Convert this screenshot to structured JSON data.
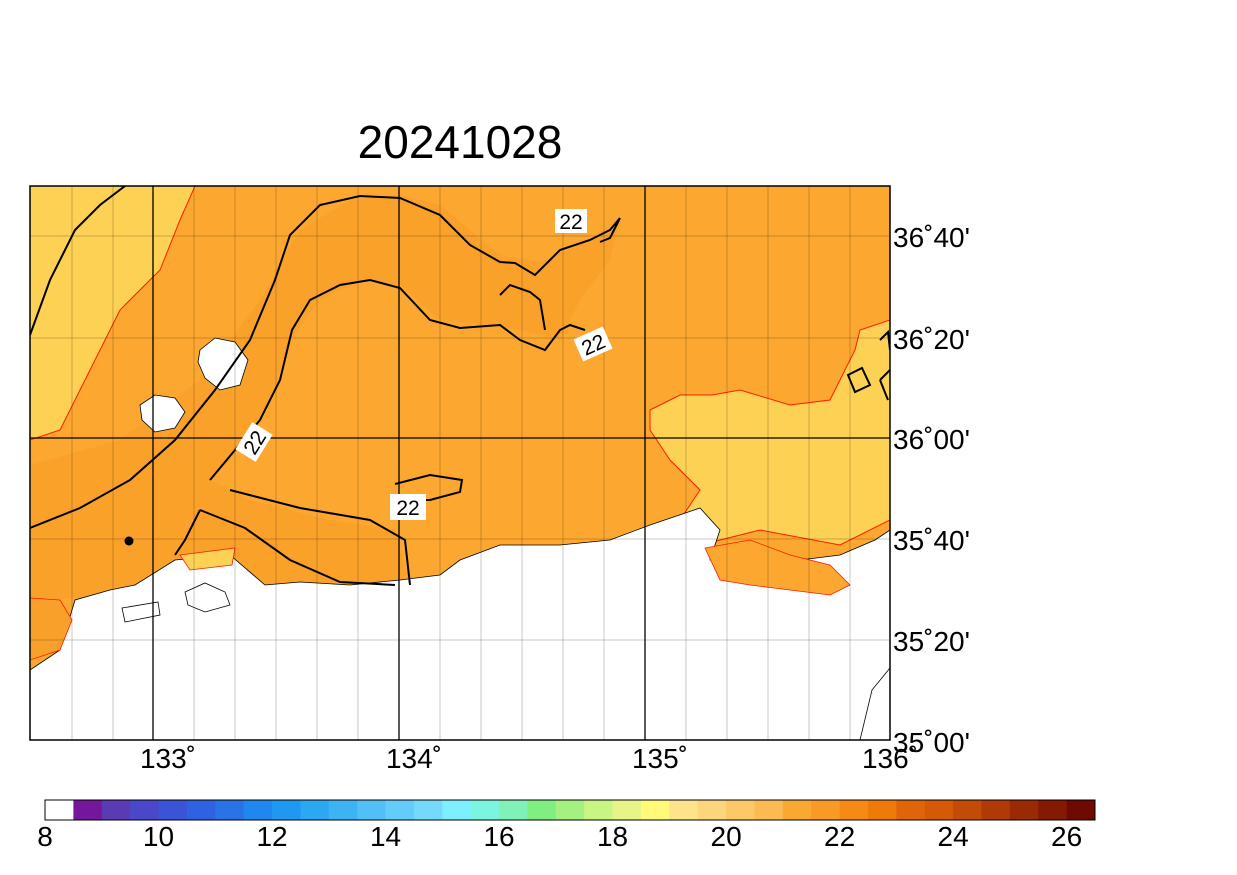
{
  "title": "20241028",
  "map": {
    "lon_range": [
      132.5,
      136.0
    ],
    "lat_range": [
      35.0,
      36.9
    ],
    "lon_tick_labels": [
      "133˚",
      "134˚",
      "135˚",
      "136˚"
    ],
    "lat_tick_labels": [
      "36˚40'",
      "36˚20'",
      "36˚00'",
      "35˚40'",
      "35˚20'",
      "35˚00'"
    ],
    "contour_labels": [
      "22",
      "22",
      "22",
      "22"
    ],
    "fill_colors": {
      "light": "#fdd154",
      "mid": "#fca830",
      "dark": "#f9a02a",
      "land": "#ffffff",
      "boundary": "#ff1a00"
    }
  },
  "colorbar": {
    "tick_labels": [
      "8",
      "10",
      "12",
      "14",
      "16",
      "18",
      "20",
      "22",
      "24",
      "26"
    ],
    "colors": [
      "#ffffff",
      "#74179b",
      "#5a3bb4",
      "#4a48c8",
      "#3a54d6",
      "#2f62e0",
      "#2873e6",
      "#1e88ef",
      "#1f98f1",
      "#2aa8f2",
      "#3cb4f4",
      "#50c0f6",
      "#62cdf8",
      "#73dafa",
      "#7cf0ff",
      "#7bf5e0",
      "#7ff2b8",
      "#7ff080",
      "#a4f080",
      "#c9f582",
      "#e6f585",
      "#fffa78",
      "#fde38a",
      "#fcd67a",
      "#fbc966",
      "#fbbb52",
      "#f9a832",
      "#f99a26",
      "#f78a14",
      "#ee7a0a",
      "#e0650a",
      "#d45a06",
      "#c24b06",
      "#b03a06",
      "#9a2a04",
      "#841a02",
      "#6e0a00"
    ]
  }
}
